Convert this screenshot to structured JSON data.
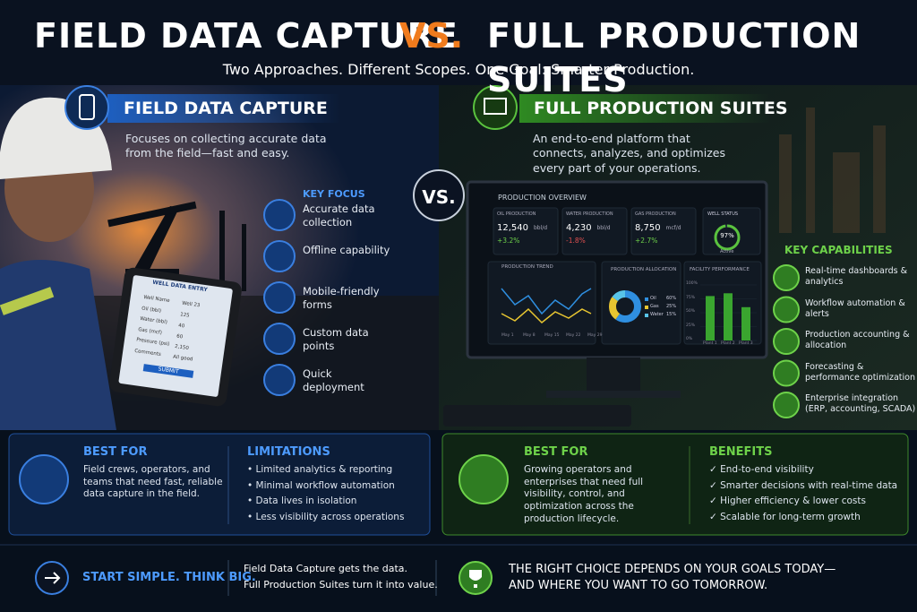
{
  "header": {
    "title_left": "FIELD DATA CAPTURE",
    "title_vs": "VS.",
    "title_right": "FULL PRODUCTION SUITES",
    "subtitle": "Two Approaches. Different Scopes. One Goal: Smarter Production."
  },
  "left": {
    "heading": "FIELD DATA CAPTURE",
    "description": "Focuses on collecting accurate data from the field—fast and easy.",
    "key_focus_title": "KEY FOCUS",
    "key_focus": [
      "Accurate data collection",
      "Offline capability",
      "Mobile-friendly forms",
      "Custom data points",
      "Quick deployment"
    ]
  },
  "vs": "VS.",
  "right": {
    "heading": "FULL PRODUCTION SUITES",
    "description": "An end-to-end platform that connects, analyzes, and optimizes every part of your operations.",
    "capabilities_title": "KEY CAPABILITIES",
    "capabilities": [
      "Real-time dashboards & analytics",
      "Workflow automation & alerts",
      "Production accounting & allocation",
      "Forecasting & performance optimization",
      "Enterprise integration (ERP, accounting, SCADA)"
    ]
  },
  "tablet": {
    "title": "WELL DATA ENTRY",
    "fields": [
      [
        "Well Name",
        "Well 23"
      ],
      [
        "Oil (bbl)",
        "125"
      ],
      [
        "Water (bbl)",
        "40"
      ],
      [
        "Gas (mcf)",
        "60"
      ],
      [
        "Pressure (psi)",
        "2,150"
      ],
      [
        "Comments",
        "All good"
      ]
    ],
    "button": "SUBMIT"
  },
  "dashboard": {
    "title": "PRODUCTION OVERVIEW",
    "kpis": [
      {
        "label": "OIL PRODUCTION",
        "value": "12,540",
        "unit": "bbl/d",
        "change": "+3.2%"
      },
      {
        "label": "WATER PRODUCTION",
        "value": "4,230",
        "unit": "bbl/d",
        "change": "-1.8%"
      },
      {
        "label": "GAS PRODUCTION",
        "value": "8,750",
        "unit": "mcf/d",
        "change": "+2.7%"
      }
    ],
    "well_status": {
      "label": "WELL STATUS",
      "value": 97,
      "value_label": "97%",
      "state": "Active"
    },
    "trend": {
      "title": "PRODUCTION TREND",
      "x": [
        "May 1",
        "May 8",
        "May 15",
        "May 22",
        "May 29"
      ]
    },
    "allocation": {
      "title": "PRODUCTION ALLOCATION",
      "items": [
        {
          "name": "Oil",
          "value": 60,
          "label": "60%",
          "color": "#2f8fe0"
        },
        {
          "name": "Gas",
          "value": 25,
          "label": "25%",
          "color": "#e7c531"
        },
        {
          "name": "Water",
          "value": 15,
          "label": "15%",
          "color": "#58c4e8"
        }
      ]
    },
    "facility": {
      "title": "FACILITY PERFORMANCE",
      "categories": [
        "Plant 1",
        "Plant 2",
        "Plant 3"
      ],
      "values": [
        80,
        85,
        60
      ],
      "ylim": [
        0,
        100
      ],
      "yticks": [
        {
          "value": 0,
          "label": "0%"
        },
        {
          "value": 25,
          "label": "25%"
        },
        {
          "value": 50,
          "label": "50%"
        },
        {
          "value": 75,
          "label": "75%"
        },
        {
          "value": 100,
          "label": "100%"
        }
      ],
      "color": "#3aa52f"
    }
  },
  "bottom_left": {
    "best_for_title": "BEST FOR",
    "best_for": "Field crews, operators, and teams that need fast, reliable data capture in the field.",
    "limitations_title": "LIMITATIONS",
    "limitations": [
      "Limited analytics & reporting",
      "Minimal workflow automation",
      "Data lives in isolation",
      "Less visibility across operations"
    ]
  },
  "bottom_right": {
    "best_for_title": "BEST FOR",
    "best_for": "Growing operators and enterprises that need full visibility, control, and optimization across the production lifecycle.",
    "benefits_title": "BENEFITS",
    "benefits": [
      "End-to-end visibility",
      "Smarter decisions with real-time data",
      "Higher efficiency & lower costs",
      "Scalable for long-term growth"
    ]
  },
  "footer": {
    "cta": "START SIMPLE. THINK BIG.",
    "middle": [
      "Field Data Capture gets the data.",
      "Full Production Suites turn it into value."
    ],
    "right": [
      "THE RIGHT CHOICE DEPENDS ON YOUR GOALS TODAY—",
      "AND WHERE YOU WANT TO GO TOMORROW."
    ]
  }
}
